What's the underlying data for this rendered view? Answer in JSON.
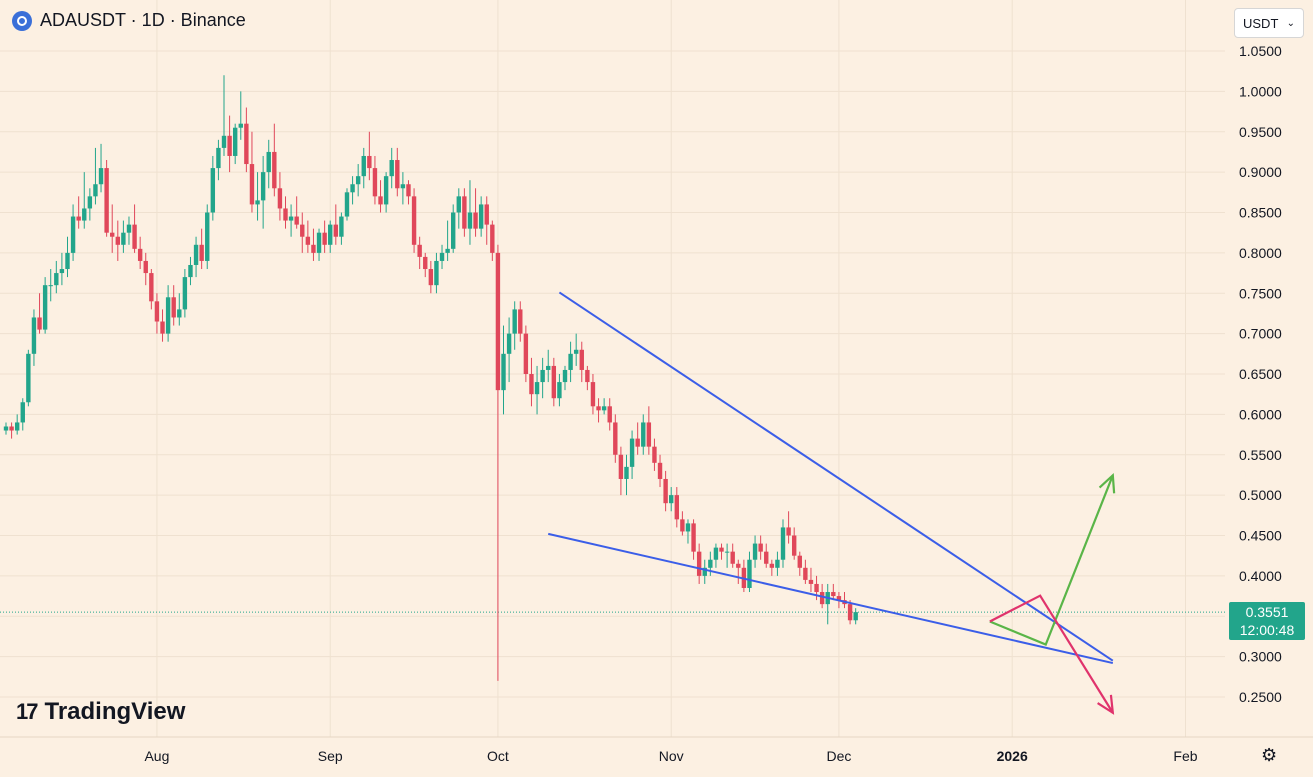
{
  "header": {
    "title": "ADAUSDT · 1D · Binance"
  },
  "currency": {
    "label": "USDT"
  },
  "price_badge": {
    "price": "0.3551",
    "countdown": "12:00:48"
  },
  "logo": {
    "text": "TradingView",
    "mark": "17"
  },
  "colors": {
    "background": "#fcf0e2",
    "up": "#22a58b",
    "down": "#e0475a",
    "trendline": "#3b5ee8",
    "bull_arrow": "#5ab548",
    "bear_arrow": "#e0336c"
  },
  "chart_data": {
    "type": "candlestick",
    "symbol": "ADAUSDT",
    "interval": "1D",
    "exchange": "Binance",
    "ylim": [
      0.22,
      1.075
    ],
    "y_ticks": [
      "0.2500",
      "0.3000",
      "0.3500",
      "0.4000",
      "0.4500",
      "0.5000",
      "0.5500",
      "0.6000",
      "0.6500",
      "0.7000",
      "0.7500",
      "0.8000",
      "0.8500",
      "0.9000",
      "0.9500",
      "1.0000",
      "1.0500"
    ],
    "x_ticks": [
      {
        "label": "Aug",
        "date": "2025-08-01"
      },
      {
        "label": "Sep",
        "date": "2025-09-01"
      },
      {
        "label": "Oct",
        "date": "2025-10-01"
      },
      {
        "label": "Nov",
        "date": "2025-11-01"
      },
      {
        "label": "Dec",
        "date": "2025-12-01"
      },
      {
        "label": "2026",
        "date": "2026-01-01"
      },
      {
        "label": "Feb",
        "date": "2026-02-01"
      }
    ],
    "x_start_date": "2025-07-05",
    "last_price": 0.3551,
    "candles": [
      [
        0.58,
        0.59,
        0.575,
        0.585
      ],
      [
        0.585,
        0.59,
        0.57,
        0.58
      ],
      [
        0.58,
        0.6,
        0.575,
        0.59
      ],
      [
        0.59,
        0.62,
        0.58,
        0.615
      ],
      [
        0.615,
        0.68,
        0.61,
        0.675
      ],
      [
        0.675,
        0.73,
        0.66,
        0.72
      ],
      [
        0.72,
        0.75,
        0.7,
        0.705
      ],
      [
        0.705,
        0.77,
        0.7,
        0.76
      ],
      [
        0.76,
        0.78,
        0.74,
        0.76
      ],
      [
        0.76,
        0.79,
        0.75,
        0.775
      ],
      [
        0.775,
        0.8,
        0.76,
        0.78
      ],
      [
        0.78,
        0.82,
        0.77,
        0.8
      ],
      [
        0.8,
        0.86,
        0.79,
        0.845
      ],
      [
        0.845,
        0.87,
        0.83,
        0.84
      ],
      [
        0.84,
        0.9,
        0.83,
        0.855
      ],
      [
        0.855,
        0.88,
        0.84,
        0.87
      ],
      [
        0.87,
        0.93,
        0.86,
        0.885
      ],
      [
        0.885,
        0.935,
        0.875,
        0.905
      ],
      [
        0.905,
        0.915,
        0.82,
        0.825
      ],
      [
        0.825,
        0.86,
        0.8,
        0.82
      ],
      [
        0.82,
        0.84,
        0.79,
        0.81
      ],
      [
        0.81,
        0.84,
        0.8,
        0.825
      ],
      [
        0.825,
        0.845,
        0.81,
        0.835
      ],
      [
        0.835,
        0.86,
        0.8,
        0.805
      ],
      [
        0.805,
        0.82,
        0.78,
        0.79
      ],
      [
        0.79,
        0.8,
        0.76,
        0.775
      ],
      [
        0.775,
        0.78,
        0.73,
        0.74
      ],
      [
        0.74,
        0.75,
        0.7,
        0.715
      ],
      [
        0.715,
        0.73,
        0.69,
        0.7
      ],
      [
        0.7,
        0.76,
        0.69,
        0.745
      ],
      [
        0.745,
        0.76,
        0.71,
        0.72
      ],
      [
        0.72,
        0.75,
        0.71,
        0.73
      ],
      [
        0.73,
        0.78,
        0.72,
        0.77
      ],
      [
        0.77,
        0.795,
        0.76,
        0.785
      ],
      [
        0.785,
        0.82,
        0.77,
        0.81
      ],
      [
        0.81,
        0.83,
        0.78,
        0.79
      ],
      [
        0.79,
        0.86,
        0.78,
        0.85
      ],
      [
        0.85,
        0.92,
        0.84,
        0.905
      ],
      [
        0.905,
        0.94,
        0.89,
        0.93
      ],
      [
        0.93,
        1.02,
        0.92,
        0.945
      ],
      [
        0.945,
        0.97,
        0.9,
        0.92
      ],
      [
        0.92,
        0.96,
        0.91,
        0.955
      ],
      [
        0.955,
        1.0,
        0.94,
        0.96
      ],
      [
        0.96,
        0.98,
        0.9,
        0.91
      ],
      [
        0.91,
        0.95,
        0.85,
        0.86
      ],
      [
        0.86,
        0.9,
        0.84,
        0.865
      ],
      [
        0.865,
        0.92,
        0.83,
        0.9
      ],
      [
        0.9,
        0.94,
        0.88,
        0.925
      ],
      [
        0.925,
        0.96,
        0.87,
        0.88
      ],
      [
        0.88,
        0.9,
        0.84,
        0.855
      ],
      [
        0.855,
        0.87,
        0.83,
        0.84
      ],
      [
        0.84,
        0.86,
        0.82,
        0.845
      ],
      [
        0.845,
        0.87,
        0.83,
        0.835
      ],
      [
        0.835,
        0.85,
        0.8,
        0.82
      ],
      [
        0.82,
        0.84,
        0.8,
        0.81
      ],
      [
        0.81,
        0.83,
        0.79,
        0.8
      ],
      [
        0.8,
        0.83,
        0.79,
        0.825
      ],
      [
        0.825,
        0.84,
        0.8,
        0.81
      ],
      [
        0.81,
        0.84,
        0.8,
        0.835
      ],
      [
        0.835,
        0.86,
        0.81,
        0.82
      ],
      [
        0.82,
        0.85,
        0.81,
        0.845
      ],
      [
        0.845,
        0.88,
        0.84,
        0.875
      ],
      [
        0.875,
        0.895,
        0.86,
        0.885
      ],
      [
        0.885,
        0.91,
        0.87,
        0.895
      ],
      [
        0.895,
        0.93,
        0.88,
        0.92
      ],
      [
        0.92,
        0.95,
        0.89,
        0.905
      ],
      [
        0.905,
        0.92,
        0.86,
        0.87
      ],
      [
        0.87,
        0.89,
        0.85,
        0.86
      ],
      [
        0.86,
        0.9,
        0.85,
        0.895
      ],
      [
        0.895,
        0.93,
        0.88,
        0.915
      ],
      [
        0.915,
        0.93,
        0.87,
        0.88
      ],
      [
        0.88,
        0.9,
        0.86,
        0.885
      ],
      [
        0.885,
        0.89,
        0.86,
        0.87
      ],
      [
        0.87,
        0.88,
        0.8,
        0.81
      ],
      [
        0.81,
        0.82,
        0.78,
        0.795
      ],
      [
        0.795,
        0.8,
        0.77,
        0.78
      ],
      [
        0.78,
        0.79,
        0.75,
        0.76
      ],
      [
        0.76,
        0.8,
        0.75,
        0.79
      ],
      [
        0.79,
        0.81,
        0.78,
        0.8
      ],
      [
        0.8,
        0.84,
        0.79,
        0.805
      ],
      [
        0.805,
        0.86,
        0.8,
        0.85
      ],
      [
        0.85,
        0.88,
        0.83,
        0.87
      ],
      [
        0.87,
        0.88,
        0.82,
        0.83
      ],
      [
        0.83,
        0.89,
        0.81,
        0.85
      ],
      [
        0.85,
        0.88,
        0.82,
        0.83
      ],
      [
        0.83,
        0.87,
        0.82,
        0.86
      ],
      [
        0.86,
        0.87,
        0.81,
        0.835
      ],
      [
        0.835,
        0.84,
        0.79,
        0.8
      ],
      [
        0.8,
        0.81,
        0.27,
        0.63
      ],
      [
        0.63,
        0.71,
        0.6,
        0.675
      ],
      [
        0.675,
        0.72,
        0.64,
        0.7
      ],
      [
        0.7,
        0.74,
        0.68,
        0.73
      ],
      [
        0.73,
        0.74,
        0.69,
        0.7
      ],
      [
        0.7,
        0.71,
        0.64,
        0.65
      ],
      [
        0.65,
        0.67,
        0.61,
        0.625
      ],
      [
        0.625,
        0.66,
        0.6,
        0.64
      ],
      [
        0.64,
        0.67,
        0.62,
        0.655
      ],
      [
        0.655,
        0.68,
        0.64,
        0.66
      ],
      [
        0.66,
        0.67,
        0.61,
        0.62
      ],
      [
        0.62,
        0.65,
        0.61,
        0.64
      ],
      [
        0.64,
        0.66,
        0.63,
        0.655
      ],
      [
        0.655,
        0.69,
        0.64,
        0.675
      ],
      [
        0.675,
        0.7,
        0.66,
        0.68
      ],
      [
        0.68,
        0.69,
        0.64,
        0.655
      ],
      [
        0.655,
        0.66,
        0.63,
        0.64
      ],
      [
        0.64,
        0.65,
        0.6,
        0.61
      ],
      [
        0.61,
        0.62,
        0.59,
        0.605
      ],
      [
        0.605,
        0.62,
        0.6,
        0.61
      ],
      [
        0.61,
        0.62,
        0.58,
        0.59
      ],
      [
        0.59,
        0.6,
        0.54,
        0.55
      ],
      [
        0.55,
        0.56,
        0.5,
        0.52
      ],
      [
        0.52,
        0.55,
        0.5,
        0.535
      ],
      [
        0.535,
        0.58,
        0.52,
        0.57
      ],
      [
        0.57,
        0.59,
        0.55,
        0.56
      ],
      [
        0.56,
        0.6,
        0.55,
        0.59
      ],
      [
        0.59,
        0.61,
        0.55,
        0.56
      ],
      [
        0.56,
        0.57,
        0.53,
        0.54
      ],
      [
        0.54,
        0.55,
        0.51,
        0.52
      ],
      [
        0.52,
        0.53,
        0.48,
        0.49
      ],
      [
        0.49,
        0.51,
        0.48,
        0.5
      ],
      [
        0.5,
        0.51,
        0.46,
        0.47
      ],
      [
        0.47,
        0.48,
        0.45,
        0.455
      ],
      [
        0.455,
        0.47,
        0.44,
        0.465
      ],
      [
        0.465,
        0.47,
        0.42,
        0.43
      ],
      [
        0.43,
        0.44,
        0.39,
        0.4
      ],
      [
        0.4,
        0.42,
        0.39,
        0.41
      ],
      [
        0.41,
        0.43,
        0.4,
        0.42
      ],
      [
        0.42,
        0.44,
        0.41,
        0.435
      ],
      [
        0.435,
        0.44,
        0.42,
        0.43
      ],
      [
        0.43,
        0.44,
        0.41,
        0.43
      ],
      [
        0.43,
        0.44,
        0.41,
        0.415
      ],
      [
        0.415,
        0.42,
        0.39,
        0.41
      ],
      [
        0.41,
        0.42,
        0.38,
        0.385
      ],
      [
        0.385,
        0.43,
        0.38,
        0.42
      ],
      [
        0.42,
        0.45,
        0.41,
        0.44
      ],
      [
        0.44,
        0.45,
        0.42,
        0.43
      ],
      [
        0.43,
        0.44,
        0.41,
        0.415
      ],
      [
        0.415,
        0.42,
        0.4,
        0.41
      ],
      [
        0.41,
        0.43,
        0.4,
        0.42
      ],
      [
        0.42,
        0.47,
        0.41,
        0.46
      ],
      [
        0.46,
        0.48,
        0.44,
        0.45
      ],
      [
        0.45,
        0.46,
        0.42,
        0.425
      ],
      [
        0.425,
        0.43,
        0.4,
        0.41
      ],
      [
        0.41,
        0.42,
        0.39,
        0.395
      ],
      [
        0.395,
        0.41,
        0.38,
        0.39
      ],
      [
        0.39,
        0.4,
        0.37,
        0.38
      ],
      [
        0.38,
        0.39,
        0.36,
        0.365
      ],
      [
        0.365,
        0.39,
        0.34,
        0.38
      ],
      [
        0.38,
        0.39,
        0.37,
        0.375
      ],
      [
        0.375,
        0.38,
        0.36,
        0.37
      ],
      [
        0.37,
        0.38,
        0.36,
        0.365
      ],
      [
        0.365,
        0.37,
        0.34,
        0.345
      ],
      [
        0.345,
        0.36,
        0.34,
        0.3551
      ]
    ],
    "drawings": [
      {
        "type": "trendline",
        "name": "upper-wedge-line",
        "from": [
          "2025-10-12",
          0.751
        ],
        "to": [
          "2026-01-19",
          0.295
        ]
      },
      {
        "type": "trendline",
        "name": "lower-wedge-line",
        "from": [
          "2025-10-10",
          0.452
        ],
        "to": [
          "2026-01-19",
          0.292
        ]
      },
      {
        "type": "arrow-path",
        "name": "bullish-scenario",
        "points": [
          [
            "2025-12-28",
            0.3435
          ],
          [
            "2026-01-07",
            0.315
          ],
          [
            "2026-01-19",
            0.5245
          ]
        ]
      },
      {
        "type": "arrow-path",
        "name": "bearish-scenario",
        "points": [
          [
            "2025-12-28",
            0.3435
          ],
          [
            "2026-01-06",
            0.3755
          ],
          [
            "2026-01-19",
            0.2305
          ]
        ]
      }
    ]
  }
}
